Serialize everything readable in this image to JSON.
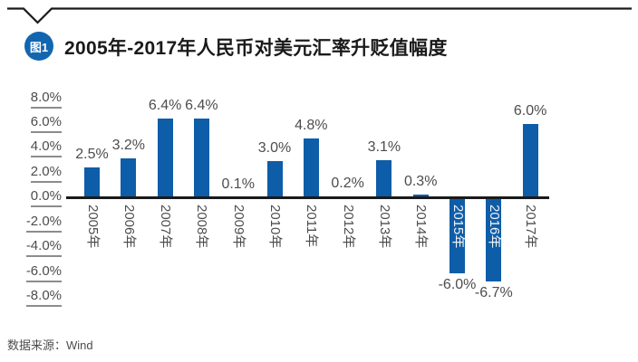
{
  "figure": {
    "badge": "图1",
    "title": "2005年-2017年人民币对美元汇率升贬值幅度",
    "source": "数据来源：Wind"
  },
  "colors": {
    "bar": "#0e5da8",
    "badge": "#1266b0",
    "axis_line": "#1a1a1a",
    "top_rule": "#1a1a1a",
    "title_text": "#1a1a1a",
    "label_text": "#4d4d4d",
    "tick_underline": "#8c8c8c",
    "negative_year_label": "#f2f2f2",
    "background": "#ffffff"
  },
  "chart_data": {
    "type": "bar",
    "title": "2005年-2017年人民币对美元汇率升贬值幅度",
    "categories": [
      "2005年",
      "2006年",
      "2007年",
      "2008年",
      "2009年",
      "2010年",
      "2011年",
      "2012年",
      "2013年",
      "2014年",
      "2015年",
      "2016年",
      "2017年"
    ],
    "values": [
      2.5,
      3.2,
      6.4,
      6.4,
      0.1,
      3.0,
      4.8,
      0.2,
      3.1,
      0.3,
      -6.0,
      -6.7,
      6.0
    ],
    "value_labels": [
      "2.5%",
      "3.2%",
      "6.4%",
      "6.4%",
      "0.1%",
      "3.0%",
      "4.8%",
      "0.2%",
      "3.1%",
      "0.3%",
      "-6.0%",
      "-6.7%",
      "6.0%"
    ],
    "unit": "percent",
    "xlabel": "",
    "ylabel": "",
    "ylim": [
      -8,
      8
    ],
    "ytick_step": 2,
    "ytick_values": [
      8,
      6,
      4,
      2,
      0,
      -2,
      -4,
      -6,
      -8
    ],
    "ytick_labels": [
      "8.0%",
      "6.0%",
      "4.0%",
      "2.0%",
      "0.0%",
      "-2.0%",
      "-4.0%",
      "-6.0%",
      "-8.0%"
    ],
    "grid": false,
    "legend": false,
    "bar_label_position": "outside-end",
    "category_label_rotation_deg": 90
  }
}
